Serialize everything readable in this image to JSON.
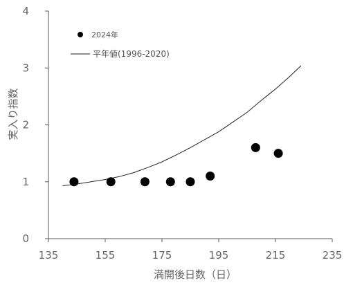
{
  "chart_data": {
    "type": "scatter",
    "xlabel": "満開後日数（日）",
    "ylabel": "実入り指数",
    "xlim": [
      135,
      235
    ],
    "ylim": [
      0,
      4
    ],
    "x_ticks": [
      135,
      155,
      175,
      195,
      215,
      235
    ],
    "y_ticks": [
      0,
      1,
      2,
      3,
      4
    ],
    "grid": false,
    "legend": "top-left",
    "series": [
      {
        "name": "2024年",
        "kind": "scatter",
        "color": "#000000",
        "x": [
          144,
          157,
          169,
          178,
          185,
          192,
          208,
          216
        ],
        "y": [
          1.0,
          1.0,
          1.0,
          1.0,
          1.0,
          1.1,
          1.6,
          1.5
        ]
      },
      {
        "name": "平年値(1996-2020)",
        "kind": "line",
        "color": "#222222",
        "x": [
          140,
          145,
          150,
          155,
          160,
          165,
          170,
          175,
          180,
          185,
          190,
          195,
          200,
          205,
          210,
          215,
          220,
          224
        ],
        "y": [
          0.93,
          0.96,
          1.0,
          1.04,
          1.09,
          1.16,
          1.25,
          1.35,
          1.47,
          1.6,
          1.74,
          1.88,
          2.05,
          2.22,
          2.43,
          2.63,
          2.85,
          3.04
        ]
      }
    ]
  }
}
